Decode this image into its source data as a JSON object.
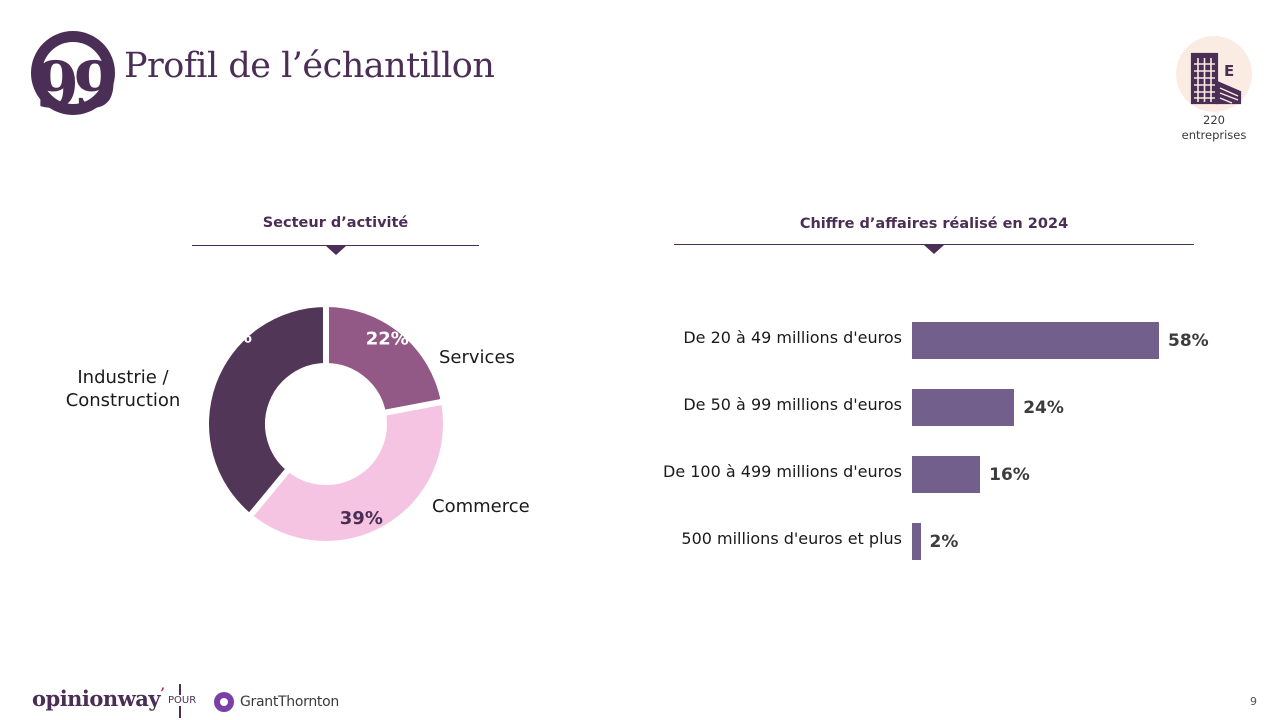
{
  "header": {
    "quote_glyph": "99",
    "title": "Profil de l’échantillon"
  },
  "badge": {
    "icon": "building-icon",
    "count": "220",
    "label": "entreprises"
  },
  "colors": {
    "brand": "#4b2e55",
    "bar": "#735f8c",
    "pie_dark": "#523658",
    "pie_mid": "#925886",
    "pie_light": "#f5c4e2",
    "badge_bg": "#fbece3"
  },
  "chart_data": [
    {
      "type": "pie",
      "title": "Secteur d’activité",
      "donut": true,
      "categories": [
        "Services",
        "Commerce",
        "Industrie / Construction"
      ],
      "values": [
        22,
        39,
        39
      ],
      "data_labels": [
        "22%",
        "39%",
        "39%"
      ],
      "colors": [
        "#925886",
        "#f5c4e2",
        "#523658"
      ],
      "label_lines": [
        [
          "Services"
        ],
        [
          "Commerce"
        ],
        [
          "Industrie /",
          "Construction"
        ]
      ]
    },
    {
      "type": "bar",
      "orientation": "horizontal",
      "title": "Chiffre d’affaires réalisé en 2024",
      "categories": [
        "De 20 à 49 millions d'euros",
        "De 50 à 99 millions d'euros",
        "De 100 à 499 millions d'euros",
        "500 millions d'euros et plus"
      ],
      "values": [
        58,
        24,
        16,
        2
      ],
      "data_labels": [
        "58%",
        "24%",
        "16%",
        "2%"
      ],
      "unit": "%",
      "xlim": [
        0,
        58
      ]
    }
  ],
  "footer": {
    "brand": "opinionway",
    "brand_dot": "’",
    "pour": "POUR",
    "partner": "GrantThornton",
    "page_number": "9"
  }
}
